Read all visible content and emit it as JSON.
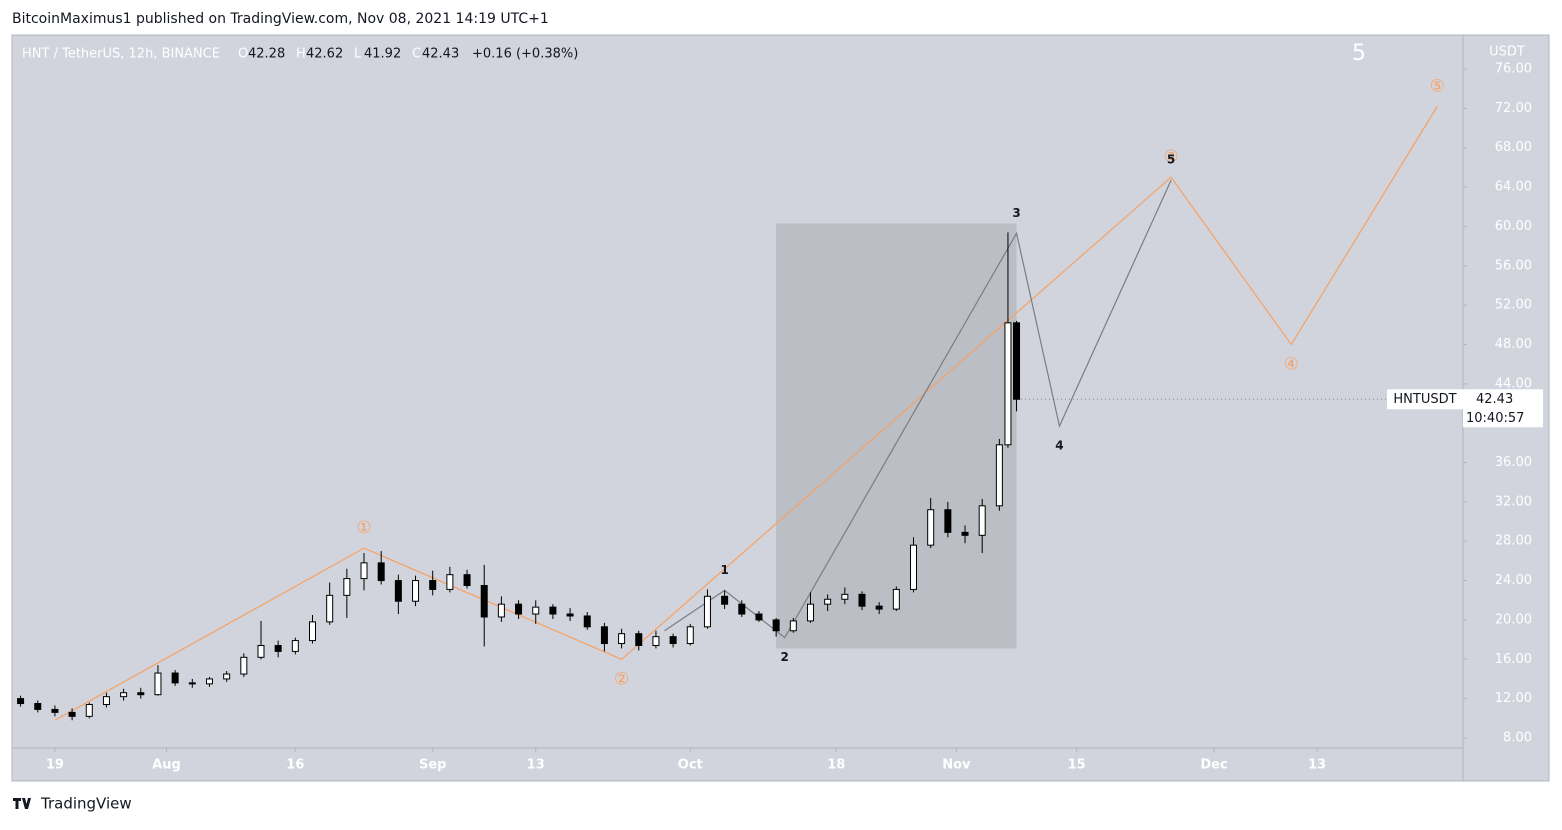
{
  "header": {
    "publisher": "BitcoinMaximus1 published on TradingView.com, Nov 08, 2021 14:19 UTC+1",
    "footer": "TradingView"
  },
  "chart_data": {
    "type": "candlestick",
    "symbol": "HNT / TetherUS, 12h, BINANCE",
    "ohlc_legend": {
      "o_label": "O",
      "o": 42.28,
      "h_label": "H",
      "h": 42.62,
      "l_label": "L",
      "l": 41.92,
      "c_label": "C",
      "c": 42.43,
      "change": "+0.16 (+0.38%)"
    },
    "corner_label": "5",
    "y_axis_label": "USDT",
    "price_tag": {
      "name": "HNTUSDT",
      "value": 42.43,
      "countdown": "10:40:57"
    },
    "up_color": "#ffffff",
    "down_color": "#000000",
    "wick_color": "#000000",
    "x": [
      "2021-07-15",
      "2021-07-17",
      "2021-07-19",
      "2021-07-21",
      "2021-07-23",
      "2021-07-25",
      "2021-07-27",
      "2021-07-29",
      "2021-07-31",
      "2021-08-02",
      "2021-08-04",
      "2021-08-06",
      "2021-08-08",
      "2021-08-10",
      "2021-08-12",
      "2021-08-14",
      "2021-08-16",
      "2021-08-18",
      "2021-08-20",
      "2021-08-22",
      "2021-08-24",
      "2021-08-26",
      "2021-08-28",
      "2021-08-30",
      "2021-09-01",
      "2021-09-03",
      "2021-09-05",
      "2021-09-07",
      "2021-09-09",
      "2021-09-11",
      "2021-09-13",
      "2021-09-15",
      "2021-09-17",
      "2021-09-19",
      "2021-09-21",
      "2021-09-23",
      "2021-09-25",
      "2021-09-27",
      "2021-09-29",
      "2021-10-01",
      "2021-10-03",
      "2021-10-05",
      "2021-10-07",
      "2021-10-09",
      "2021-10-11",
      "2021-10-13",
      "2021-10-15",
      "2021-10-17",
      "2021-10-19",
      "2021-10-21",
      "2021-10-23",
      "2021-10-25",
      "2021-10-27",
      "2021-10-29",
      "2021-10-31",
      "2021-11-02",
      "2021-11-04",
      "2021-11-06",
      "2021-11-07",
      "2021-11-08"
    ],
    "open": [
      12.0,
      11.5,
      10.9,
      10.6,
      10.2,
      11.4,
      12.2,
      12.6,
      12.4,
      14.6,
      13.6,
      13.5,
      14.0,
      14.5,
      16.2,
      17.4,
      16.8,
      17.9,
      19.8,
      22.5,
      24.2,
      25.8,
      24.0,
      21.9,
      24.0,
      23.1,
      24.6,
      23.5,
      20.3,
      21.6,
      20.6,
      21.3,
      20.6,
      20.4,
      19.3,
      17.6,
      18.6,
      17.4,
      18.3,
      17.6,
      19.3,
      22.4,
      21.6,
      20.6,
      20.0,
      18.9,
      19.9,
      21.6,
      22.1,
      22.6,
      21.4,
      21.1,
      23.1,
      27.6,
      31.2,
      28.9,
      28.6,
      31.6,
      37.8,
      50.2
    ],
    "high": [
      12.3,
      11.8,
      11.3,
      11.0,
      11.6,
      12.6,
      13.0,
      13.1,
      15.4,
      14.9,
      14.0,
      14.2,
      14.8,
      16.6,
      19.9,
      17.9,
      18.2,
      20.5,
      23.8,
      25.2,
      26.8,
      27.0,
      24.6,
      24.5,
      25.0,
      25.4,
      25.1,
      25.6,
      22.4,
      22.0,
      22.0,
      21.6,
      21.2,
      20.8,
      19.7,
      19.1,
      18.9,
      18.9,
      18.6,
      19.6,
      23.1,
      23.0,
      22.0,
      20.9,
      20.2,
      20.2,
      22.8,
      22.6,
      23.3,
      22.9,
      21.8,
      23.4,
      28.4,
      32.4,
      32.0,
      29.6,
      32.3,
      38.4,
      59.4,
      50.4
    ],
    "low": [
      11.2,
      10.6,
      10.2,
      9.8,
      10.0,
      11.1,
      11.8,
      12.0,
      12.3,
      13.3,
      13.1,
      13.2,
      13.7,
      14.2,
      16.0,
      16.2,
      16.5,
      17.6,
      19.5,
      20.2,
      23.0,
      23.6,
      20.6,
      21.4,
      22.5,
      22.8,
      23.2,
      17.3,
      19.8,
      20.1,
      19.6,
      20.1,
      19.9,
      19.0,
      16.8,
      17.1,
      16.9,
      17.1,
      17.2,
      17.4,
      19.1,
      21.1,
      20.3,
      19.8,
      18.3,
      18.7,
      19.7,
      20.9,
      21.6,
      21.0,
      20.6,
      20.9,
      22.8,
      27.3,
      28.4,
      27.8,
      26.8,
      31.1,
      37.5,
      41.2
    ],
    "close": [
      11.5,
      10.9,
      10.6,
      10.2,
      11.4,
      12.2,
      12.6,
      12.4,
      14.6,
      13.6,
      13.5,
      14.0,
      14.5,
      16.2,
      17.4,
      16.8,
      17.9,
      19.8,
      22.5,
      24.2,
      25.8,
      24.0,
      21.9,
      24.0,
      23.1,
      24.6,
      23.5,
      20.3,
      21.6,
      20.6,
      21.3,
      20.6,
      20.4,
      19.3,
      17.6,
      18.6,
      17.4,
      18.3,
      17.6,
      19.3,
      22.4,
      21.6,
      20.6,
      20.0,
      18.9,
      19.9,
      21.6,
      22.1,
      22.6,
      21.4,
      21.1,
      23.1,
      27.6,
      31.2,
      28.9,
      28.6,
      31.6,
      37.8,
      50.2,
      42.43
    ],
    "xlim": [
      "2021-07-14",
      "2021-12-30"
    ],
    "xticks": [
      {
        "value": "2021-07-19",
        "label": "19"
      },
      {
        "value": "2021-08-01",
        "label": "Aug"
      },
      {
        "value": "2021-08-16",
        "label": "16"
      },
      {
        "value": "2021-09-01",
        "label": "Sep"
      },
      {
        "value": "2021-09-13",
        "label": "13"
      },
      {
        "value": "2021-10-01",
        "label": "Oct"
      },
      {
        "value": "2021-10-18",
        "label": "18"
      },
      {
        "value": "2021-11-01",
        "label": "Nov"
      },
      {
        "value": "2021-11-15",
        "label": "15"
      },
      {
        "value": "2021-12-01",
        "label": "Dec"
      },
      {
        "value": "2021-12-13",
        "label": "13"
      }
    ],
    "ylim": [
      6.98,
      79.46
    ],
    "yticks": [
      {
        "value": 8,
        "label": "8.00"
      },
      {
        "value": 12,
        "label": "12.00"
      },
      {
        "value": 16,
        "label": "16.00"
      },
      {
        "value": 20,
        "label": "20.00"
      },
      {
        "value": 24,
        "label": "24.00"
      },
      {
        "value": 28,
        "label": "28.00"
      },
      {
        "value": 32,
        "label": "32.00"
      },
      {
        "value": 36,
        "label": "36.00"
      },
      {
        "value": 40,
        "label": "40.00"
      },
      {
        "value": 44,
        "label": "44.00"
      },
      {
        "value": 48,
        "label": "48.00"
      },
      {
        "value": 52,
        "label": "52.00"
      },
      {
        "value": 56,
        "label": "56.00"
      },
      {
        "value": 60,
        "label": "60.00"
      },
      {
        "value": 64,
        "label": "64.00"
      },
      {
        "value": 68,
        "label": "68.00"
      },
      {
        "value": 72,
        "label": "72.00"
      },
      {
        "value": 76,
        "label": "76.00"
      }
    ],
    "box": {
      "x": [
        "2021-10-11",
        "2021-11-08"
      ],
      "y": [
        17.1,
        60.3
      ],
      "color": "#a9abb3"
    },
    "waves": [
      {
        "color": "#f7a163",
        "x": [
          "2021-07-19",
          "2021-08-24",
          "2021-09-23",
          "2021-11-26",
          "2021-12-10",
          "2021-12-27"
        ],
        "y": [
          9.8,
          27.3,
          16.0,
          65.0,
          48.0,
          72.2
        ],
        "labels": [
          null,
          "①",
          "②",
          "③",
          "④",
          "⑤"
        ]
      },
      {
        "color": "#7b7d84",
        "x": [
          "2021-09-28",
          "2021-10-05",
          "2021-10-12",
          "2021-11-08",
          "2021-11-13",
          "2021-11-26"
        ],
        "y": [
          18.9,
          23.0,
          18.2,
          59.3,
          39.7,
          64.7
        ],
        "labels": [
          null,
          "1",
          "2",
          "3",
          "4",
          "5"
        ]
      }
    ]
  }
}
